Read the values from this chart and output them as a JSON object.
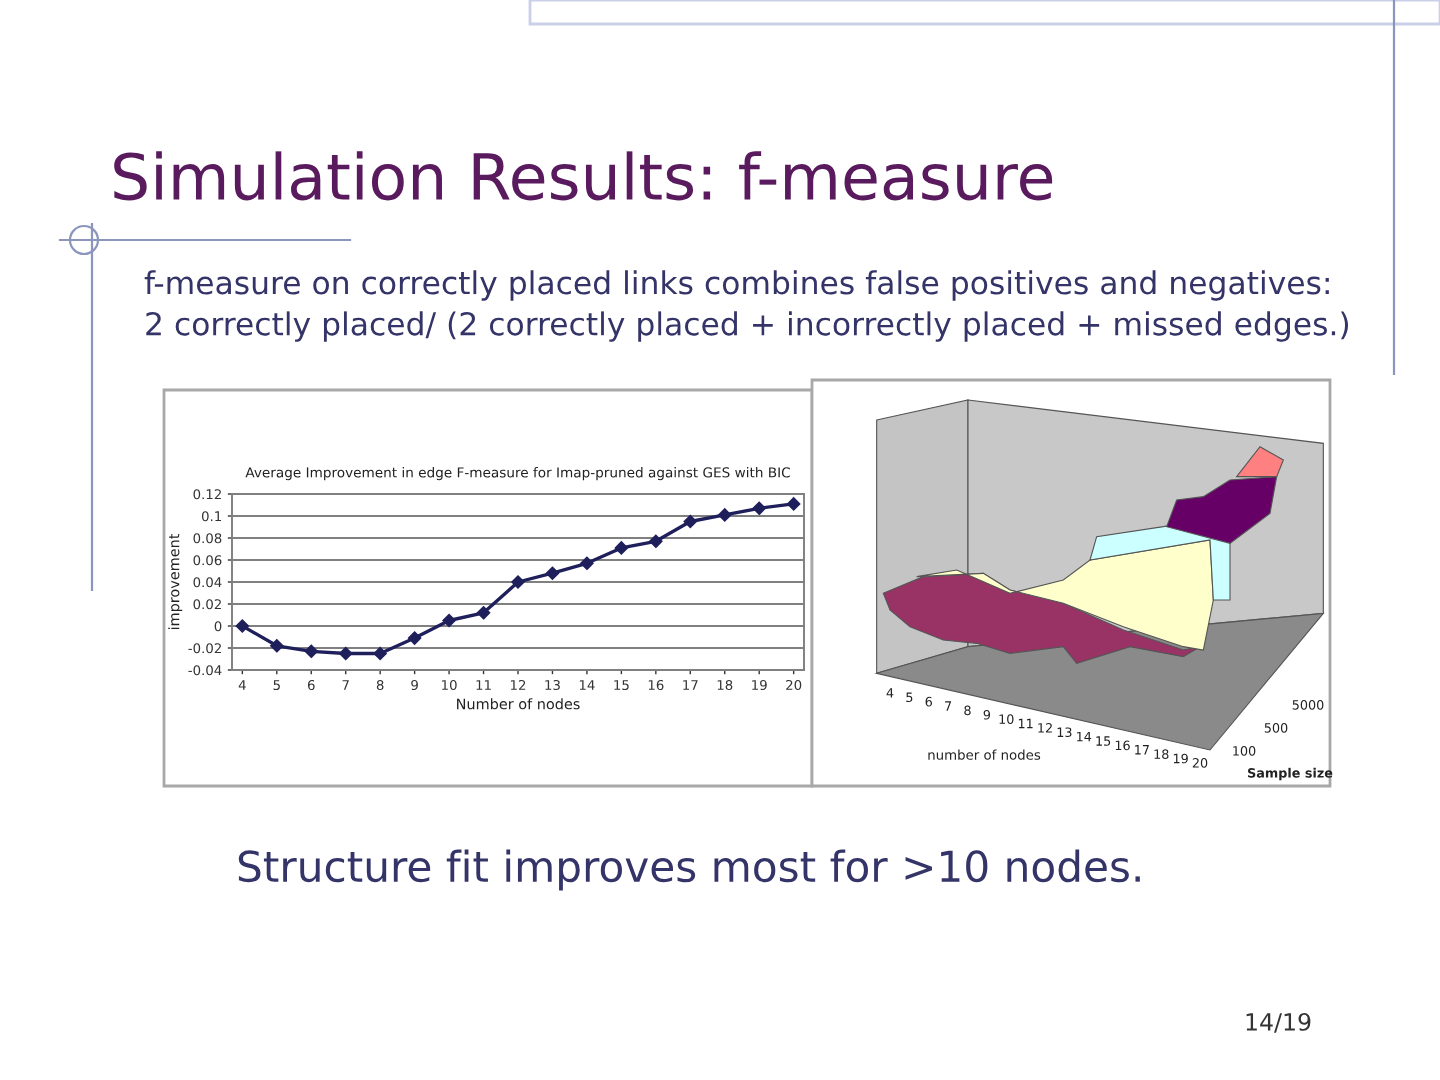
{
  "chart_data": [
    {
      "type": "line",
      "title": "Average Improvement in edge F-measure for Imap-pruned against GES with BIC",
      "xlabel": "Number of nodes",
      "ylabel": "improvement",
      "categories": [
        "4",
        "5",
        "6",
        "7",
        "8",
        "9",
        "10",
        "11",
        "12",
        "13",
        "14",
        "15",
        "16",
        "17",
        "18",
        "19",
        "20"
      ],
      "series": [
        {
          "color": "#1f1f5c",
          "values": [
            0.0,
            -0.018,
            -0.023,
            -0.025,
            -0.025,
            -0.011,
            0.005,
            0.012,
            0.04,
            0.048,
            0.057,
            0.071,
            0.077,
            0.095,
            0.101,
            0.107,
            0.111
          ]
        }
      ],
      "ylim": [
        -0.04,
        0.12
      ],
      "yticks": [
        0.12,
        0.1,
        0.08,
        0.06,
        0.04,
        0.02,
        0,
        -0.02,
        -0.04
      ],
      "grid": "y",
      "marker": "diamond",
      "line_style": "solid",
      "annotations": [
        "Simulation Results: f-measure",
        "f-measure on correctly placed links combines false positives and negatives:\n2 correctly placed/ (2 correctly placed + incorrectly placed + missed edges.)",
        "Structure fit improves most for >10 nodes.",
        "14/19"
      ]
    },
    {
      "type": "other",
      "xlabel": "number of nodes",
      "ylabel": "Sample size",
      "categories": [
        "4",
        "5",
        "6",
        "7",
        "8",
        "9",
        "10",
        "11",
        "12",
        "13",
        "14",
        "15",
        "16",
        "17",
        "18",
        "19",
        "20"
      ],
      "y_categories": [
        "100",
        "500",
        "5000"
      ]
    }
  ]
}
